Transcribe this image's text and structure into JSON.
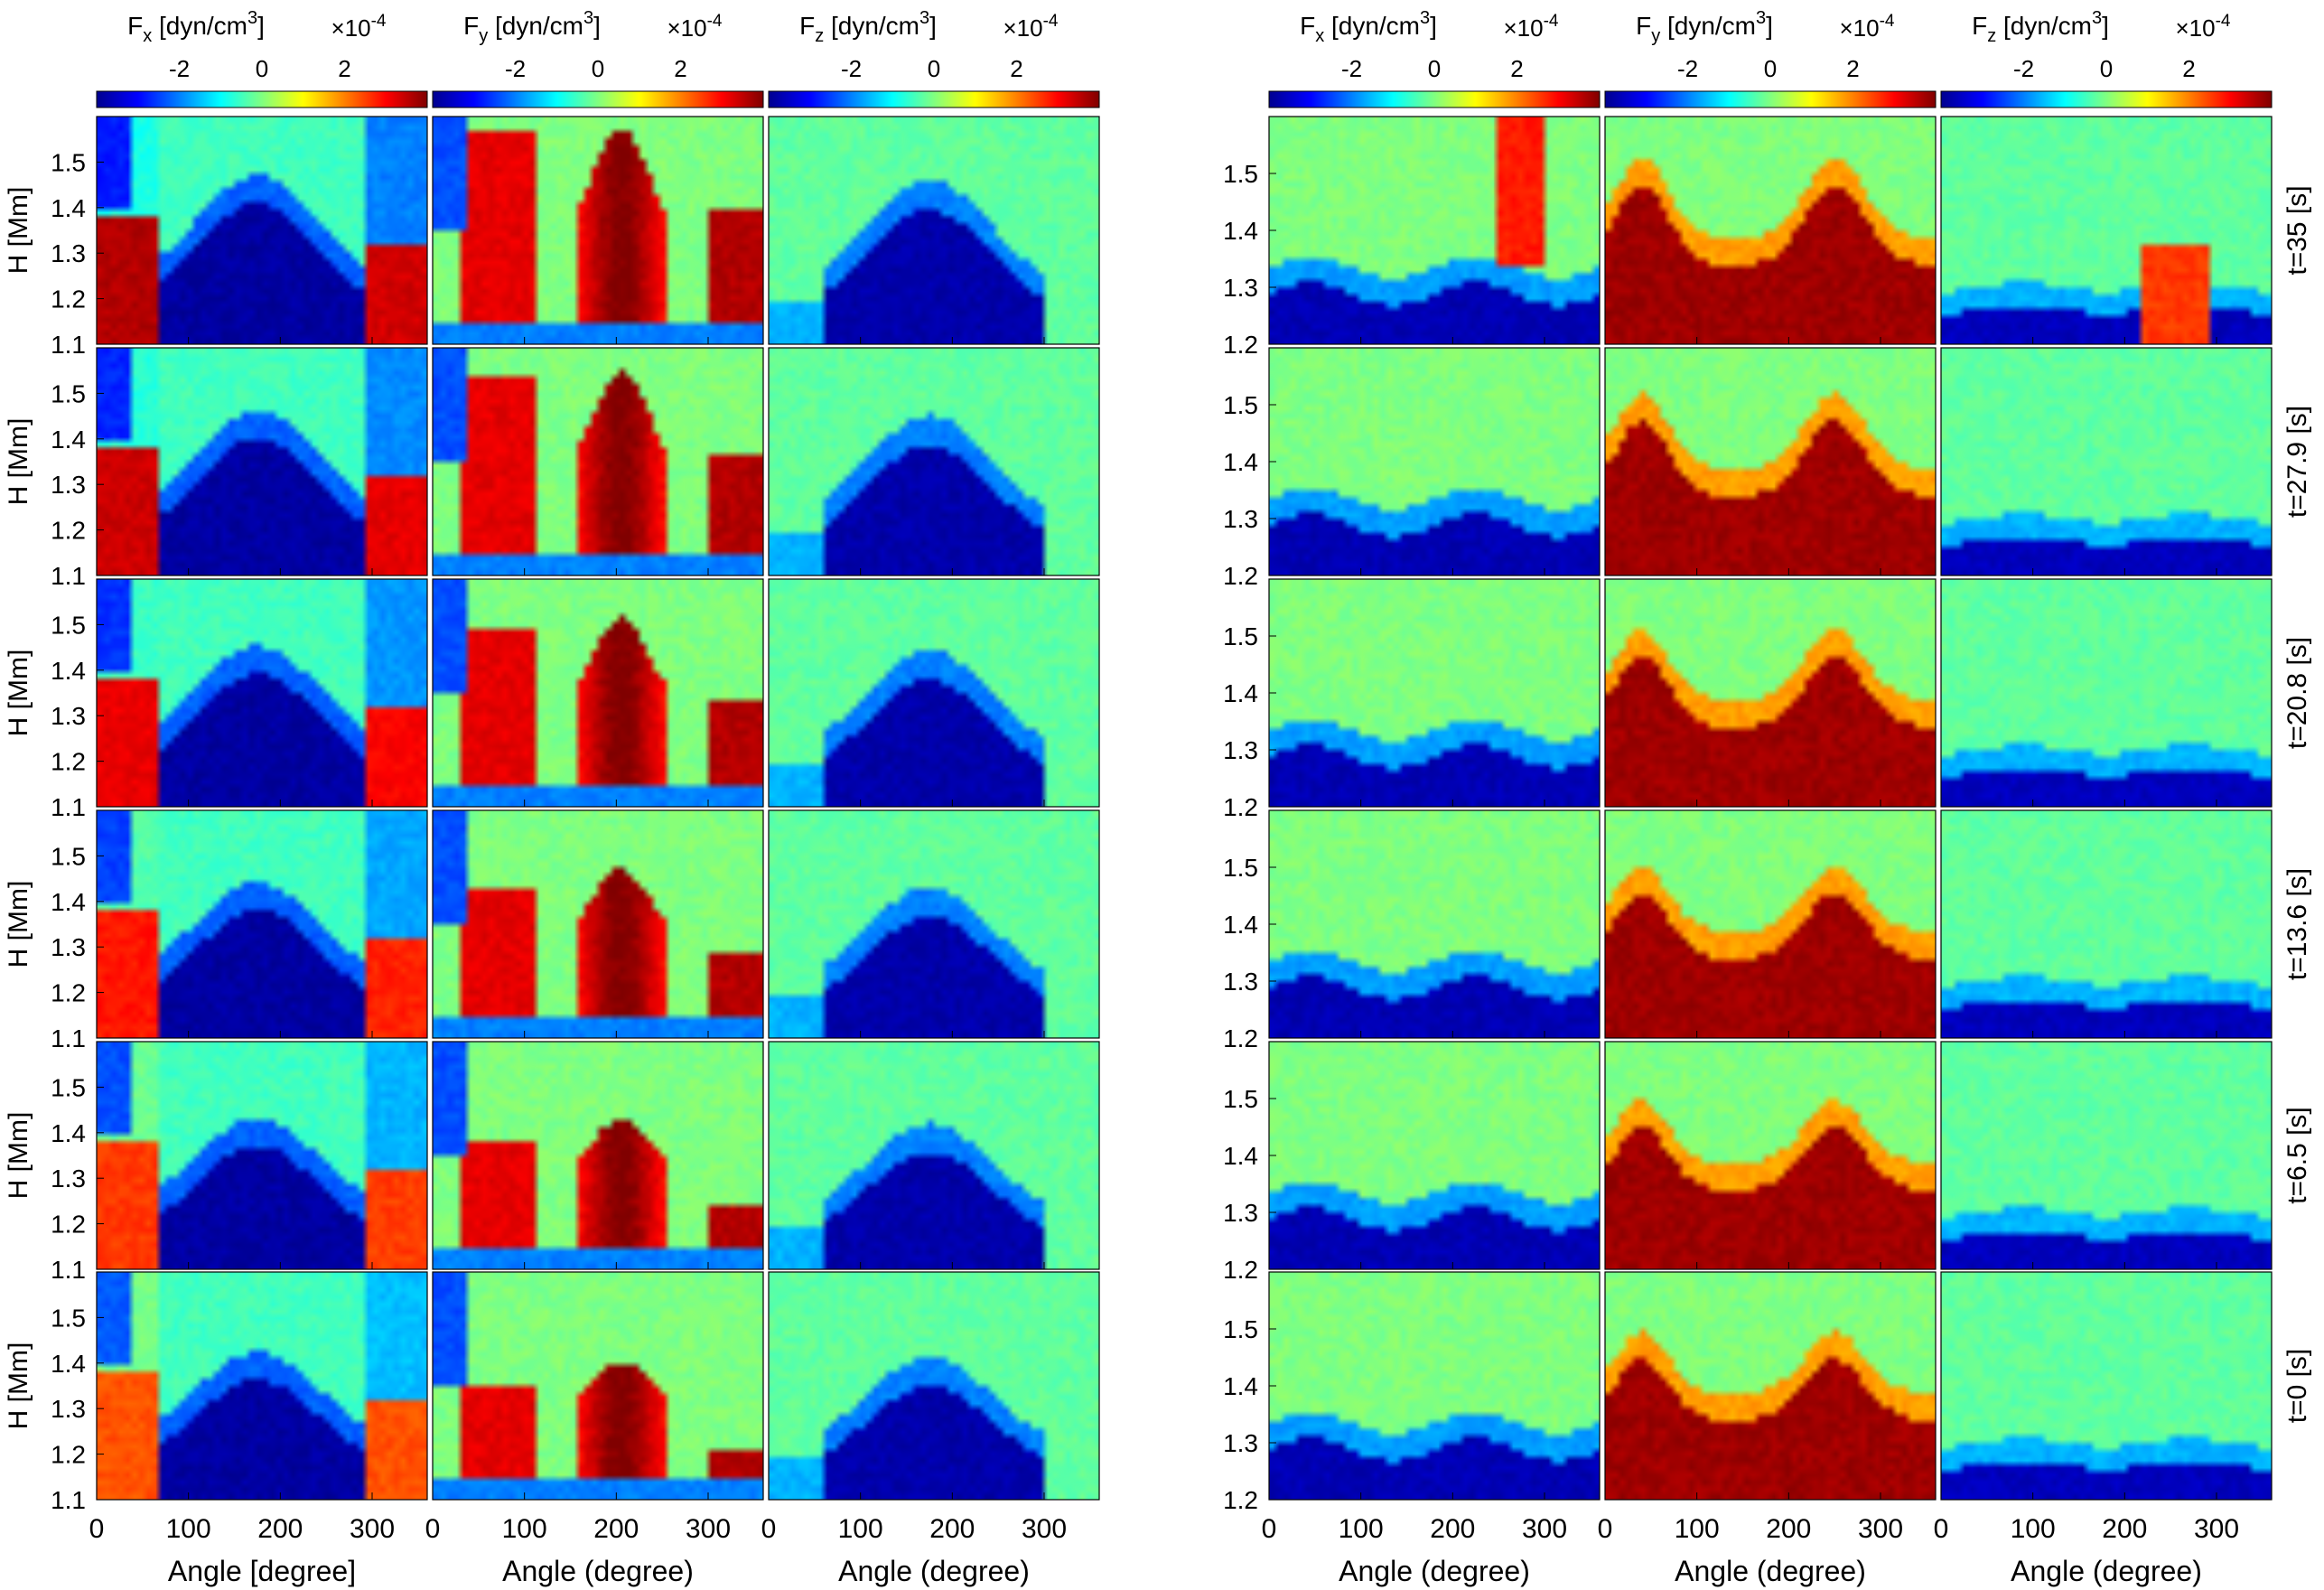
{
  "figure": {
    "colormap": [
      "#00008f",
      "#0000ff",
      "#0080ff",
      "#00ffff",
      "#80ff80",
      "#ffff00",
      "#ff8000",
      "#ff0000",
      "#800000"
    ],
    "colorbar_unit": "×10",
    "colorbar_exponent": "-4",
    "heatmap": {
      "h": 32,
      "w": 48,
      "bg": {
        "fx": 0.44,
        "fy": 0.5,
        "fz": 0.47
      }
    }
  },
  "chart_data": [
    {
      "panel": "left",
      "type": "heatmap",
      "columns": [
        {
          "title": {
            "base": "F",
            "sub": "x",
            "unit": "[dyn/cm",
            "sup": "3",
            "close": "]"
          },
          "field": "fx",
          "colorbar_ticks": [
            -2,
            0,
            2
          ],
          "clim": [
            -4,
            4
          ],
          "xlabel": "Angle [degree]"
        },
        {
          "title": {
            "base": "F",
            "sub": "y",
            "unit": "[dyn/cm",
            "sup": "3",
            "close": "]"
          },
          "field": "fy",
          "colorbar_ticks": [
            -2,
            0,
            2
          ],
          "clim": [
            -4,
            4
          ],
          "xlabel": "Angle (degree)"
        },
        {
          "title": {
            "base": "F",
            "sub": "z",
            "unit": "[dyn/cm",
            "sup": "3",
            "close": "]"
          },
          "field": "fz",
          "colorbar_ticks": [
            -2,
            0,
            2
          ],
          "clim": [
            -4,
            4
          ],
          "xlabel": "Angle (degree)"
        }
      ],
      "ylabel": "H [Mm]",
      "xlim": [
        0,
        360
      ],
      "xticks": [
        0,
        100,
        200,
        300
      ],
      "ylim": [
        1.1,
        1.6
      ],
      "yticks": [
        1.1,
        1.2,
        1.3,
        1.4,
        1.5
      ],
      "rows": [
        {
          "time": "t=35 [s]",
          "intensity": 1.0
        },
        {
          "time": "t=27.9 [s]",
          "intensity": 0.9
        },
        {
          "time": "t=20.8 [s]",
          "intensity": 0.78
        },
        {
          "time": "t=13.6 [s]",
          "intensity": 0.62
        },
        {
          "time": "t=6.5 [s]",
          "intensity": 0.48
        },
        {
          "time": "t=0 [s]",
          "intensity": 0.38
        }
      ]
    },
    {
      "panel": "right",
      "type": "heatmap",
      "columns": [
        {
          "title": {
            "base": "F",
            "sub": "x",
            "unit": "[dyn/cm",
            "sup": "3",
            "close": "]"
          },
          "field": "fx",
          "colorbar_ticks": [
            -2,
            0,
            2
          ],
          "clim": [
            -4,
            4
          ],
          "xlabel": "Angle (degree)"
        },
        {
          "title": {
            "base": "F",
            "sub": "y",
            "unit": "[dyn/cm",
            "sup": "3",
            "close": "]"
          },
          "field": "fy",
          "colorbar_ticks": [
            -2,
            0,
            2
          ],
          "clim": [
            -4,
            4
          ],
          "xlabel": "Angle (degree)"
        },
        {
          "title": {
            "base": "F",
            "sub": "z",
            "unit": "[dyn/cm",
            "sup": "3",
            "close": "]"
          },
          "field": "fz",
          "colorbar_ticks": [
            -2,
            0,
            2
          ],
          "clim": [
            -4,
            4
          ],
          "xlabel": "Angle (degree)"
        }
      ],
      "ylabel": "",
      "xlim": [
        0,
        360
      ],
      "xticks": [
        0,
        100,
        200,
        300
      ],
      "ylim": [
        1.2,
        1.6
      ],
      "yticks": [
        1.2,
        1.3,
        1.4,
        1.5
      ],
      "rows": [
        {
          "time": "t=35 [s]",
          "intensity": 1.0
        },
        {
          "time": "t=27.9 [s]",
          "intensity": 0.85
        },
        {
          "time": "t=20.8 [s]",
          "intensity": 0.7
        },
        {
          "time": "t=13.6 [s]",
          "intensity": 0.55
        },
        {
          "time": "t=6.5 [s]",
          "intensity": 0.45
        },
        {
          "time": "t=0 [s]",
          "intensity": 0.4
        }
      ]
    }
  ]
}
